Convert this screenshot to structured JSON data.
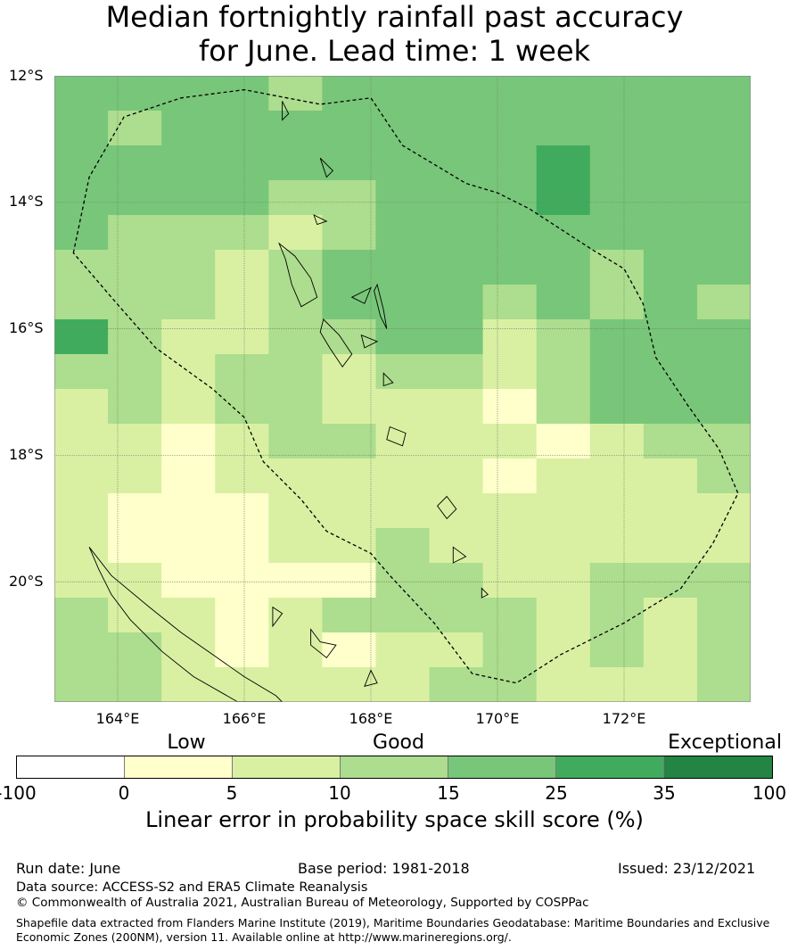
{
  "title": {
    "line1": "Median fortnightly rainfall past accuracy",
    "line2": "for June. Lead time: 1 week"
  },
  "map": {
    "lat_labels": [
      "12°S",
      "14°S",
      "16°S",
      "18°S",
      "20°S"
    ],
    "lon_labels": [
      "164°E",
      "166°E",
      "168°E",
      "170°E",
      "172°E"
    ],
    "extent": {
      "lon_min": 163,
      "lon_max": 174,
      "lat_min": -21.9,
      "lat_max": -12
    },
    "grid_colors": {
      "0": "#ffffcc",
      "5": "#d9f0a3",
      "10": "#addd8e",
      "15": "#78c679",
      "25": "#41ab5d",
      "35": "#238443"
    },
    "grid": [
      [
        15,
        15,
        15,
        15,
        10,
        15,
        15,
        15,
        15,
        15,
        15,
        15,
        15
      ],
      [
        15,
        10,
        15,
        15,
        15,
        15,
        15,
        15,
        15,
        15,
        15,
        15,
        15
      ],
      [
        15,
        15,
        15,
        15,
        15,
        15,
        15,
        15,
        15,
        25,
        15,
        15,
        15
      ],
      [
        15,
        15,
        15,
        15,
        10,
        10,
        15,
        15,
        15,
        25,
        15,
        15,
        15
      ],
      [
        15,
        10,
        10,
        10,
        5,
        10,
        15,
        15,
        15,
        15,
        15,
        15,
        15
      ],
      [
        10,
        10,
        10,
        5,
        10,
        15,
        15,
        15,
        15,
        15,
        10,
        15,
        15
      ],
      [
        10,
        10,
        10,
        5,
        10,
        15,
        15,
        15,
        10,
        15,
        10,
        15,
        10
      ],
      [
        25,
        10,
        5,
        5,
        10,
        10,
        15,
        15,
        5,
        10,
        15,
        15,
        15
      ],
      [
        10,
        10,
        5,
        10,
        10,
        5,
        10,
        10,
        5,
        10,
        15,
        15,
        15
      ],
      [
        5,
        10,
        5,
        10,
        10,
        5,
        5,
        5,
        0,
        10,
        15,
        15,
        15
      ],
      [
        5,
        5,
        0,
        5,
        10,
        10,
        5,
        5,
        5,
        0,
        5,
        10,
        10
      ],
      [
        5,
        5,
        0,
        5,
        5,
        5,
        5,
        5,
        0,
        5,
        5,
        5,
        10
      ],
      [
        5,
        0,
        0,
        0,
        5,
        5,
        5,
        5,
        5,
        5,
        5,
        5,
        5
      ],
      [
        5,
        0,
        0,
        0,
        5,
        5,
        10,
        5,
        5,
        5,
        5,
        5,
        5
      ],
      [
        5,
        5,
        0,
        0,
        0,
        0,
        10,
        10,
        5,
        5,
        10,
        10,
        10
      ],
      [
        10,
        5,
        5,
        0,
        5,
        10,
        10,
        10,
        10,
        5,
        10,
        5,
        10
      ],
      [
        10,
        10,
        5,
        0,
        5,
        0,
        5,
        5,
        10,
        5,
        10,
        5,
        10
      ],
      [
        10,
        10,
        5,
        5,
        5,
        5,
        5,
        10,
        10,
        5,
        5,
        5,
        10
      ]
    ],
    "eez_boundary": [
      [
        163.3,
        -14.8
      ],
      [
        163.55,
        -13.6
      ],
      [
        164.1,
        -12.65
      ],
      [
        165,
        -12.35
      ],
      [
        166,
        -12.22
      ],
      [
        167.2,
        -12.45
      ],
      [
        168,
        -12.35
      ],
      [
        168.5,
        -13.1
      ],
      [
        169.5,
        -13.7
      ],
      [
        170,
        -13.85
      ],
      [
        170.5,
        -14.1
      ],
      [
        171.5,
        -14.75
      ],
      [
        172,
        -15.05
      ],
      [
        172.3,
        -15.6
      ],
      [
        172.5,
        -16.45
      ],
      [
        173,
        -17.2
      ],
      [
        173.5,
        -17.9
      ],
      [
        173.8,
        -18.6
      ],
      [
        173.4,
        -19.4
      ],
      [
        172.9,
        -20.1
      ],
      [
        172,
        -20.65
      ],
      [
        171,
        -21.15
      ],
      [
        170.3,
        -21.6
      ],
      [
        169.6,
        -21.45
      ],
      [
        169,
        -20.65
      ],
      [
        168.3,
        -19.9
      ],
      [
        168,
        -19.55
      ],
      [
        167.3,
        -19.2
      ],
      [
        166.9,
        -18.7
      ],
      [
        166.3,
        -18.1
      ],
      [
        166,
        -17.4
      ],
      [
        165.5,
        -16.95
      ],
      [
        164.6,
        -16.3
      ],
      [
        163.9,
        -15.5
      ]
    ]
  },
  "colorbar": {
    "categories": [
      {
        "label": "Low"
      },
      {
        "label": "Good"
      },
      {
        "label": "Exceptional"
      }
    ],
    "ticks": [
      "-100",
      "0",
      "5",
      "10",
      "15",
      "25",
      "35",
      "100"
    ],
    "colors": [
      "#ffffff",
      "#ffffcc",
      "#d9f0a3",
      "#addd8e",
      "#78c679",
      "#41ab5d",
      "#238443"
    ],
    "label": "Linear error in probability space skill score (%)"
  },
  "footer": {
    "run_date": "Run date: June",
    "base_period": "Base period: 1981-2018",
    "issued": "Issued: 23/12/2021",
    "data_source": "Data source: ACCESS-S2 and ERA5 Climate Reanalysis",
    "copyright": "© Commonwealth of Australia 2021, Australian Bureau of Meteorology, Supported by COSPPac",
    "shapefile_line1": "Shapefile data extracted from Flanders Marine Institute (2019), Maritime Boundaries Geodatabase: Maritime Boundaries and Exclusive",
    "shapefile_line2": "Economic Zones (200NM), version 11. Available online at http://www.marineregions.org/."
  }
}
